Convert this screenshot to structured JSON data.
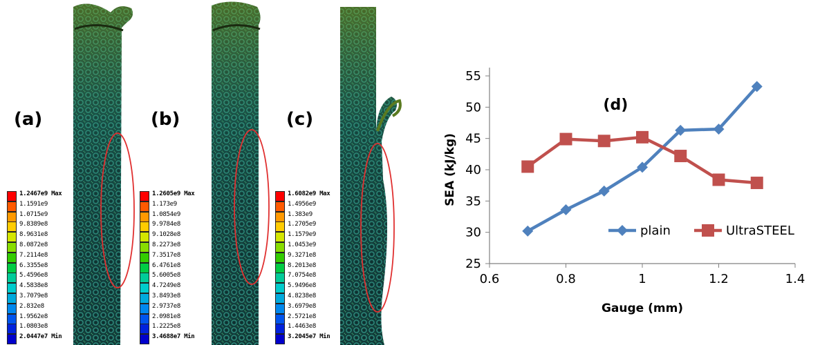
{
  "panels": [
    {
      "label": "(a)",
      "legend": [
        "1.2467e9 Max",
        "1.1591e9",
        "1.0715e9",
        "9.8389e8",
        "8.9631e8",
        "8.0872e8",
        "7.2114e8",
        "6.3355e8",
        "5.4596e8",
        "4.5838e8",
        "3.7079e8",
        "2.832e8",
        "1.9562e8",
        "1.0803e8",
        "2.0447e7 Min"
      ]
    },
    {
      "label": "(b)",
      "legend": [
        "1.2605e9 Max",
        "1.173e9",
        "1.0854e9",
        "9.9784e8",
        "9.1028e8",
        "8.2273e8",
        "7.3517e8",
        "6.4761e8",
        "5.6005e8",
        "4.7249e8",
        "3.8493e8",
        "2.9737e8",
        "2.0981e8",
        "1.2225e8",
        "3.4688e7 Min"
      ]
    },
    {
      "label": "(c)",
      "legend": [
        "1.6082e9 Max",
        "1.4956e9",
        "1.383e9",
        "1.2705e9",
        "1.1579e9",
        "1.0453e9",
        "9.3271e8",
        "8.2013e8",
        "7.0754e8",
        "5.9496e8",
        "4.8238e8",
        "3.6979e8",
        "2.5721e8",
        "1.4463e8",
        "3.2045e7 Min"
      ]
    }
  ],
  "legend_colors": [
    "#ff0000",
    "#ff5a00",
    "#ff9900",
    "#ffcc00",
    "#d4e600",
    "#88dd00",
    "#33cc00",
    "#00cc44",
    "#00cc99",
    "#00cccc",
    "#00aadd",
    "#0088ee",
    "#0055ee",
    "#0022dd",
    "#0000cc"
  ],
  "chart_data": {
    "type": "line",
    "annotation": "(d)",
    "xlabel": "Gauge (mm)",
    "ylabel": "SEA (kJ/kg)",
    "xlim": [
      0.6,
      1.4
    ],
    "ylim": [
      25,
      55
    ],
    "xticks": [
      "0.6",
      "0.8",
      "1",
      "1.2",
      "1.4"
    ],
    "yticks": [
      "25",
      "30",
      "35",
      "40",
      "45",
      "50",
      "55"
    ],
    "grid": false,
    "legend_position": "bottom-right",
    "series": [
      {
        "name": "plain",
        "color": "#4f81bd",
        "marker": "diamond",
        "x": [
          0.7,
          0.8,
          0.9,
          1.0,
          1.1,
          1.2,
          1.3
        ],
        "y": [
          30.2,
          33.6,
          36.6,
          40.4,
          46.3,
          46.5,
          53.3
        ]
      },
      {
        "name": "UltraSTEEL",
        "color": "#c0504d",
        "marker": "square",
        "x": [
          0.7,
          0.8,
          0.9,
          1.0,
          1.1,
          1.2,
          1.3
        ],
        "y": [
          40.5,
          44.9,
          44.6,
          45.2,
          42.2,
          38.4,
          37.9
        ]
      }
    ]
  }
}
